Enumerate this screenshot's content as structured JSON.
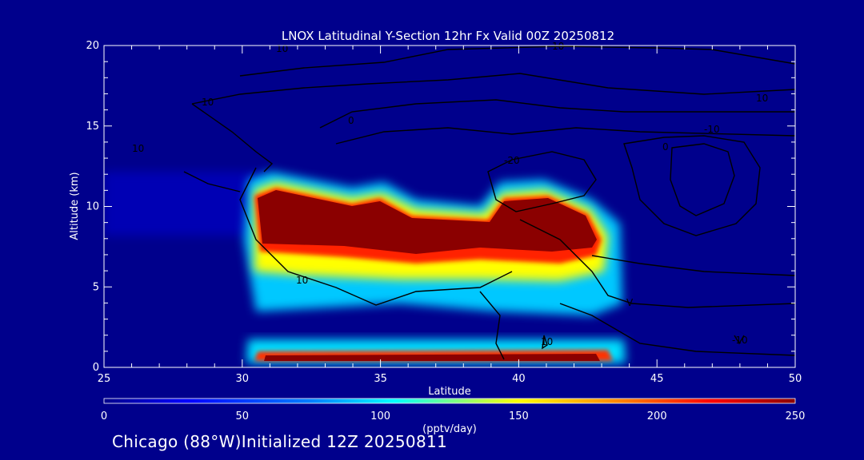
{
  "chart_data": {
    "type": "heatmap",
    "title": "LNOX Latitudinal Y-Section 12hr  Fx Valid 00Z 20250812",
    "xlabel": "Latitude",
    "ylabel": "Altitude (km)",
    "xlim": [
      25,
      50
    ],
    "ylim": [
      0,
      20
    ],
    "x_ticks": [
      "25",
      "30",
      "35",
      "40",
      "45",
      "50"
    ],
    "y_ticks": [
      "0",
      "5",
      "10",
      "15",
      "20"
    ],
    "colorbar": {
      "range": [
        0,
        250
      ],
      "ticks": [
        "0",
        "50",
        "100",
        "150",
        "200",
        "250"
      ],
      "label": "(pptv/day)"
    },
    "contour_labels": [
      "10",
      "10",
      "10",
      "10",
      "0",
      "-10",
      "10",
      "0",
      "-20",
      "10",
      "V",
      "10",
      "-10"
    ],
    "bottom_text": "Chicago (88°W)Initialized 12Z 20250811"
  },
  "colors": {
    "background": "#00008c",
    "foreground": "#ffffff",
    "contour": "#000000"
  }
}
